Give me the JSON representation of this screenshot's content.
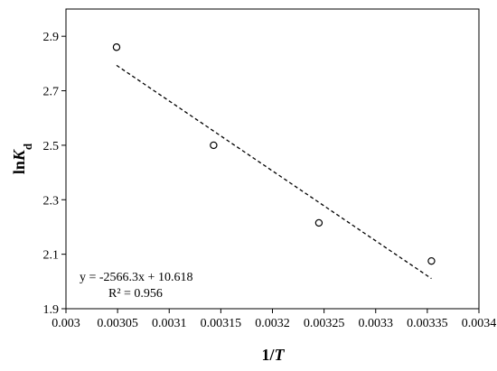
{
  "chart_data": {
    "type": "scatter",
    "title": "",
    "xlabel": {
      "prefix": "1/",
      "var": "T"
    },
    "ylabel": {
      "prefix": "ln",
      "var": "K",
      "sub": "d"
    },
    "xlim": [
      0.003,
      0.0034
    ],
    "ylim": [
      1.9,
      3.0
    ],
    "xticks": [
      0.003,
      0.00305,
      0.0031,
      0.00315,
      0.0032,
      0.00325,
      0.0033,
      0.00335,
      0.0034
    ],
    "xtick_labels": [
      "0.003",
      "0.00305",
      "0.0031",
      "0.00315",
      "0.0032",
      "0.00325",
      "0.0033",
      "0.00335",
      "0.0034"
    ],
    "yticks": [
      1.9,
      2.1,
      2.3,
      2.5,
      2.7,
      2.9
    ],
    "ytick_labels": [
      "1.9",
      "2.1",
      "2.3",
      "2.5",
      "2.7",
      "2.9"
    ],
    "grid": false,
    "legend": "none",
    "series": [
      {
        "marker": "open-circle",
        "points": [
          {
            "x": 0.003049,
            "y": 2.86
          },
          {
            "x": 0.003143,
            "y": 2.5
          },
          {
            "x": 0.003245,
            "y": 2.215
          },
          {
            "x": 0.003354,
            "y": 2.075
          }
        ]
      }
    ],
    "trendline": {
      "style": "dashed",
      "slope": -2566.3,
      "intercept": 10.618,
      "x_range": [
        0.003049,
        0.003354
      ]
    },
    "annotations": [
      "y = -2566.3x + 10.618",
      "R² = 0.956"
    ]
  }
}
